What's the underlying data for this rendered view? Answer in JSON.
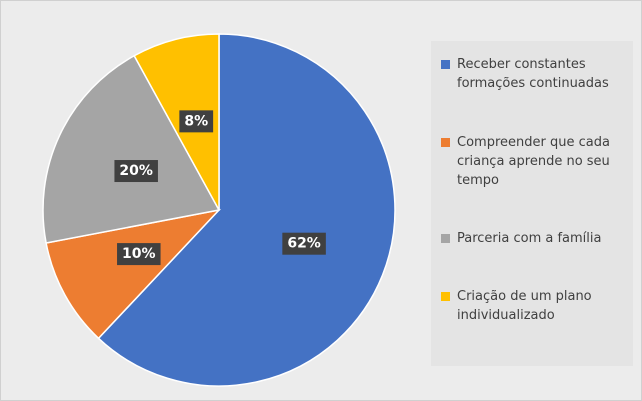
{
  "chart_data": {
    "type": "pie",
    "categories": [
      "Receber constantes formações continuadas",
      "Compreender que cada criança aprende no seu tempo",
      "Parceria com a família",
      "Criação de um plano individualizado"
    ],
    "values": [
      62,
      10,
      20,
      8
    ],
    "value_labels": [
      "62%",
      "10%",
      "20%",
      "8%"
    ],
    "colors": [
      "#4472c4",
      "#ed7d31",
      "#a5a5a5",
      "#ffc000"
    ],
    "legend": "right"
  }
}
